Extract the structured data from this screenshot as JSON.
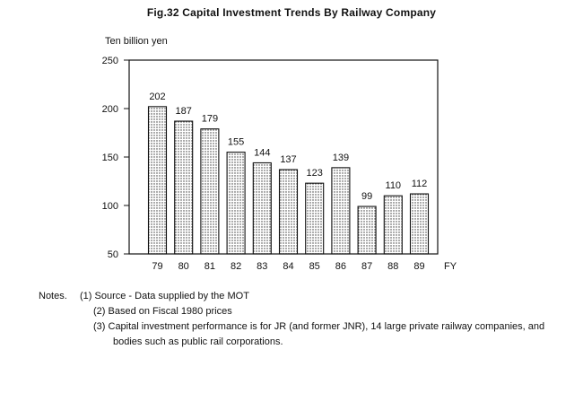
{
  "title": "Fig.32   Capital Investment Trends By Railway Company",
  "chart_data": {
    "type": "bar",
    "ylabel": "Ten billion yen",
    "xlabel": "FY",
    "categories": [
      "79",
      "80",
      "81",
      "82",
      "83",
      "84",
      "85",
      "86",
      "87",
      "88",
      "89"
    ],
    "values": [
      202,
      187,
      179,
      155,
      144,
      137,
      123,
      139,
      99,
      110,
      112
    ],
    "ylim": [
      50,
      250
    ],
    "yticks": [
      50,
      100,
      150,
      200,
      250
    ],
    "grid": false,
    "bar_fill": "dotted pattern"
  },
  "notes": {
    "heading": "Notes.",
    "items": [
      "(1) Source - Data supplied by the MOT",
      "(2) Based on Fiscal 1980 prices",
      "(3) Capital investment performance is for JR (and former JNR), 14 large private railway companies, and"
    ],
    "continuation": "bodies such as public rail corporations."
  }
}
